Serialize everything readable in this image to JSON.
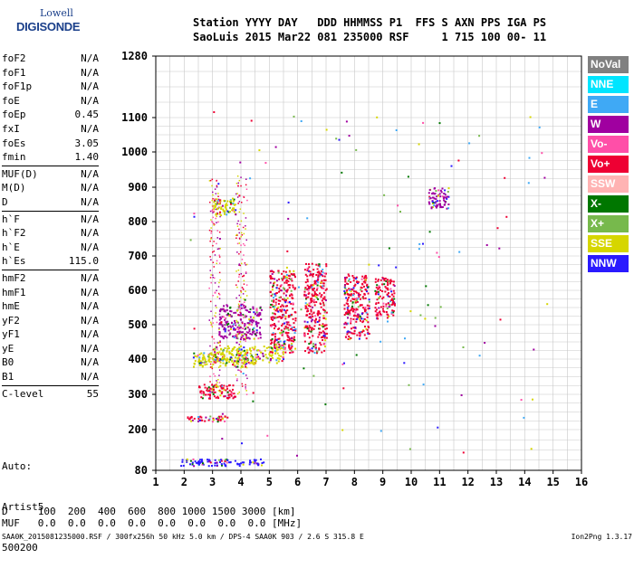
{
  "logo": {
    "line1": "Lowell",
    "line2": "DIGISONDE"
  },
  "header": {
    "line1": "Station YYYY DAY   DDD HHMMSS P1  FFS S AXN PPS IGA PS",
    "line2": "SaoLuis 2015 Mar22 081 235000 RSF     1 715 100 00- 11"
  },
  "params": [
    [
      {
        "name": "foF2",
        "value": "N/A"
      },
      {
        "name": "foF1",
        "value": "N/A"
      },
      {
        "name": "foF1p",
        "value": "N/A"
      },
      {
        "name": "foE",
        "value": "N/A"
      },
      {
        "name": "foEp",
        "value": "0.45"
      },
      {
        "name": "fxI",
        "value": "N/A"
      },
      {
        "name": "foEs",
        "value": "3.05"
      },
      {
        "name": "fmin",
        "value": "1.40"
      }
    ],
    [
      {
        "name": "MUF(D)",
        "value": "N/A"
      },
      {
        "name": "M(D)",
        "value": "N/A"
      },
      {
        "name": "D",
        "value": "N/A"
      }
    ],
    [
      {
        "name": "h`F",
        "value": "N/A"
      },
      {
        "name": "h`F2",
        "value": "N/A"
      },
      {
        "name": "h`E",
        "value": "N/A"
      },
      {
        "name": "h`Es",
        "value": "115.0"
      }
    ],
    [
      {
        "name": "hmF2",
        "value": "N/A"
      },
      {
        "name": "hmF1",
        "value": "N/A"
      },
      {
        "name": "hmE",
        "value": "N/A"
      },
      {
        "name": "yF2",
        "value": "N/A"
      },
      {
        "name": "yF1",
        "value": "N/A"
      },
      {
        "name": "yE",
        "value": "N/A"
      },
      {
        "name": "B0",
        "value": "N/A"
      },
      {
        "name": "B1",
        "value": "N/A"
      }
    ],
    [
      {
        "name": "C-level",
        "value": "55"
      }
    ]
  ],
  "autoscaling": {
    "line1": "Auto:",
    "line2": "Artist5",
    "line3": "500200"
  },
  "legend": [
    {
      "label": "NoVal",
      "color": "#808080"
    },
    {
      "label": "NNE",
      "color": "#00e5ff"
    },
    {
      "label": "E",
      "color": "#3fa9f5"
    },
    {
      "label": "W",
      "color": "#a000a0"
    },
    {
      "label": "Vo-",
      "color": "#ff4fa8"
    },
    {
      "label": "Vo+",
      "color": "#ee0033"
    },
    {
      "label": "SSW",
      "color": "#ffb3b3"
    },
    {
      "label": "X-",
      "color": "#007700"
    },
    {
      "label": "X+",
      "color": "#77b94c"
    },
    {
      "label": "SSE",
      "color": "#d6d600"
    },
    {
      "label": "NNW",
      "color": "#2a1aff"
    }
  ],
  "chart_data": {
    "type": "scatter",
    "x_ticks": [
      "1",
      "2",
      "3",
      "4",
      "5",
      "6",
      "7",
      "8",
      "9",
      "10",
      "11",
      "12",
      "13",
      "14",
      "15",
      "16"
    ],
    "y_ticks": [
      "80",
      "200",
      "300",
      "400",
      "500",
      "600",
      "700",
      "800",
      "900",
      "1000",
      "1100",
      "1280"
    ],
    "xlim": [
      1,
      16
    ],
    "ylim": [
      80,
      1280
    ],
    "grid": true,
    "y_scale": "nonlinear (as labelled)",
    "clusters": [
      {
        "x": [
          1.8,
          4.8
        ],
        "y": [
          95,
          115
        ],
        "color": "#2a1aff"
      },
      {
        "x": [
          2.3,
          4.5
        ],
        "y": [
          380,
          420
        ],
        "color": "#d6d600"
      },
      {
        "x": [
          3.0,
          5.5
        ],
        "y": [
          390,
          440
        ],
        "color": "#d6d600"
      },
      {
        "x": [
          2.1,
          3.5
        ],
        "y": [
          225,
          240
        ],
        "color": "#ee0033"
      },
      {
        "x": [
          2.5,
          3.8
        ],
        "y": [
          290,
          330
        ],
        "color": "#ee0033"
      },
      {
        "x": [
          3.2,
          4.7
        ],
        "y": [
          460,
          560
        ],
        "color": "#a000a0"
      },
      {
        "x": [
          3.0,
          3.8
        ],
        "y": [
          820,
          870
        ],
        "color": "#d6d600"
      },
      {
        "x": [
          5.0,
          5.9
        ],
        "y": [
          420,
          660
        ],
        "color": "#ee0033"
      },
      {
        "x": [
          6.2,
          7.0
        ],
        "y": [
          420,
          680
        ],
        "color": "#ee0033"
      },
      {
        "x": [
          7.6,
          8.5
        ],
        "y": [
          460,
          650
        ],
        "color": "#ee0033"
      },
      {
        "x": [
          8.7,
          9.4
        ],
        "y": [
          520,
          640
        ],
        "color": "#ee0033"
      },
      {
        "x": [
          10.6,
          11.3
        ],
        "y": [
          840,
          900
        ],
        "color": "#a000a0"
      }
    ]
  },
  "bottom": {
    "d_row": "D     100  200  400  600  800 1000 1500 3000 [km]",
    "muf_row": "MUF   0.0  0.0  0.0  0.0  0.0  0.0  0.0  0.0 [MHz]",
    "footer": "SAA0K_2015081235000.RSF / 300fx256h 50 kHz 5.0 km / DPS-4 SAA0K 903 / 2.6 S 315.8 E",
    "version": "Ion2Png 1.3.17"
  }
}
